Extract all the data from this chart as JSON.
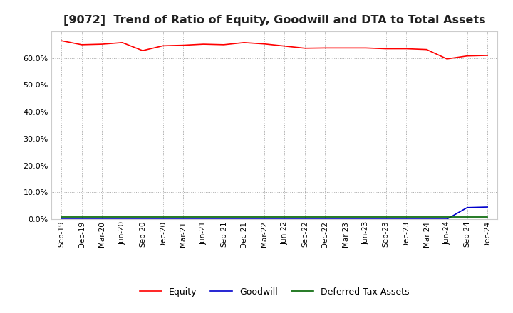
{
  "title": "[9072]  Trend of Ratio of Equity, Goodwill and DTA to Total Assets",
  "title_fontsize": 11.5,
  "background_color": "#ffffff",
  "plot_bg_color": "#ffffff",
  "grid_color": "#aaaaaa",
  "ylim": [
    0.0,
    0.7
  ],
  "yticks": [
    0.0,
    0.1,
    0.2,
    0.3,
    0.4,
    0.5,
    0.6
  ],
  "x_labels": [
    "Sep-19",
    "Dec-19",
    "Mar-20",
    "Jun-20",
    "Sep-20",
    "Dec-20",
    "Mar-21",
    "Jun-21",
    "Sep-21",
    "Dec-21",
    "Mar-22",
    "Jun-22",
    "Sep-22",
    "Dec-22",
    "Mar-23",
    "Jun-23",
    "Sep-23",
    "Dec-23",
    "Mar-24",
    "Jun-24",
    "Sep-24",
    "Dec-24"
  ],
  "equity": [
    0.665,
    0.65,
    0.652,
    0.658,
    0.628,
    0.646,
    0.648,
    0.652,
    0.65,
    0.658,
    0.653,
    0.645,
    0.637,
    0.638,
    0.638,
    0.638,
    0.635,
    0.635,
    0.632,
    0.597,
    0.608,
    0.61
  ],
  "goodwill": [
    0.0,
    0.0,
    0.0,
    0.0,
    0.0,
    0.0,
    0.0,
    0.0,
    0.0,
    0.0,
    0.0,
    0.0,
    0.0,
    0.0,
    0.0,
    0.0,
    0.0,
    0.0,
    0.0,
    0.0,
    0.043,
    0.045
  ],
  "dta": [
    0.008,
    0.008,
    0.008,
    0.008,
    0.008,
    0.008,
    0.008,
    0.008,
    0.008,
    0.008,
    0.008,
    0.008,
    0.008,
    0.008,
    0.008,
    0.008,
    0.008,
    0.008,
    0.008,
    0.008,
    0.008,
    0.008
  ],
  "equity_color": "#ff0000",
  "goodwill_color": "#0000cc",
  "dta_color": "#006400",
  "line_width": 1.2,
  "legend_labels": [
    "Equity",
    "Goodwill",
    "Deferred Tax Assets"
  ]
}
